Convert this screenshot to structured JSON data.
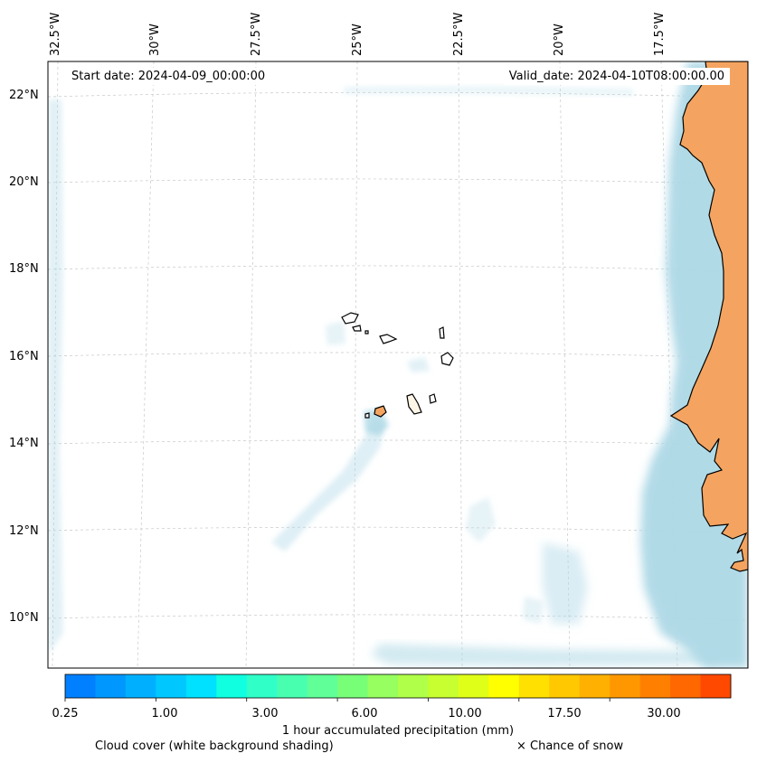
{
  "map": {
    "start_date": "Start date: 2024-04-09_00:00:00",
    "valid_date": "Valid_date: 2024-04-10T08:00:00.00",
    "lon_labels": [
      "32.5°W",
      "30°W",
      "27.5°W",
      "25°W",
      "22.5°W",
      "20°W",
      "17.5°W"
    ],
    "lat_labels": [
      "22°N",
      "20°N",
      "18°N",
      "16°N",
      "14°N",
      "12°N",
      "10°N"
    ]
  },
  "colorbar": {
    "tick_labels": [
      "0.25",
      "1.00",
      "3.00",
      "6.00",
      "10.00",
      "17.50",
      "30.00"
    ],
    "title": "1 hour accumulated precipitation (mm)",
    "colors": [
      "#0080ff",
      "#0098ff",
      "#00b0ff",
      "#00c8ff",
      "#00e0ff",
      "#10ffe0",
      "#30ffc8",
      "#48ffb0",
      "#60ff98",
      "#78ff78",
      "#98ff60",
      "#b0ff48",
      "#c8ff30",
      "#e0ff18",
      "#ffff00",
      "#ffe000",
      "#ffc800",
      "#ffb000",
      "#ff9800",
      "#ff8000",
      "#ff6800",
      "#ff4800"
    ]
  },
  "legend": {
    "cloud_cover": "Cloud cover (white background shading)",
    "snow": "× Chance of snow"
  },
  "colors": {
    "land": "#f4a460",
    "cloud": "#add8e6",
    "coastline": "#000000",
    "gridline": "#c8c8c8"
  }
}
